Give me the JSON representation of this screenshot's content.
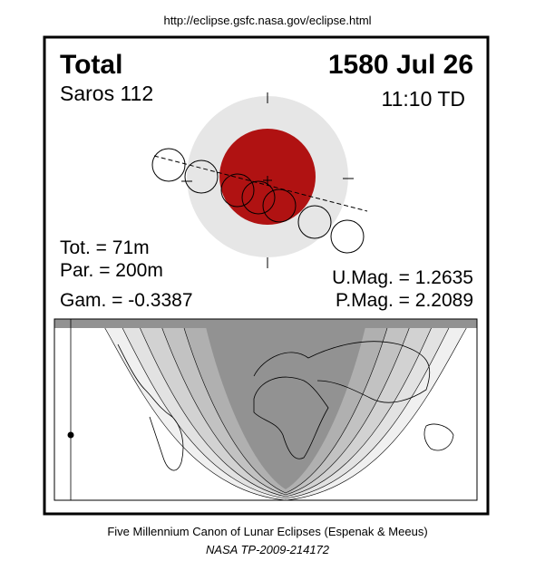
{
  "header": {
    "url": "http://eclipse.gsfc.nasa.gov/eclipse.html"
  },
  "eclipse": {
    "type": "Total",
    "date": "1580 Jul 26",
    "saros": "Saros 112",
    "time": "11:10 TD"
  },
  "stats": {
    "tot": "Tot. =  71m",
    "par": "Par. = 200m",
    "gam": "Gam. = -0.3387",
    "umag": "U.Mag. = 1.2635",
    "pmag": "P.Mag. = 2.2089"
  },
  "footer": {
    "line1": "Five Millennium Canon of Lunar Eclipses (Espenak & Meeus)",
    "line2": "NASA TP-2009-214172"
  }
}
